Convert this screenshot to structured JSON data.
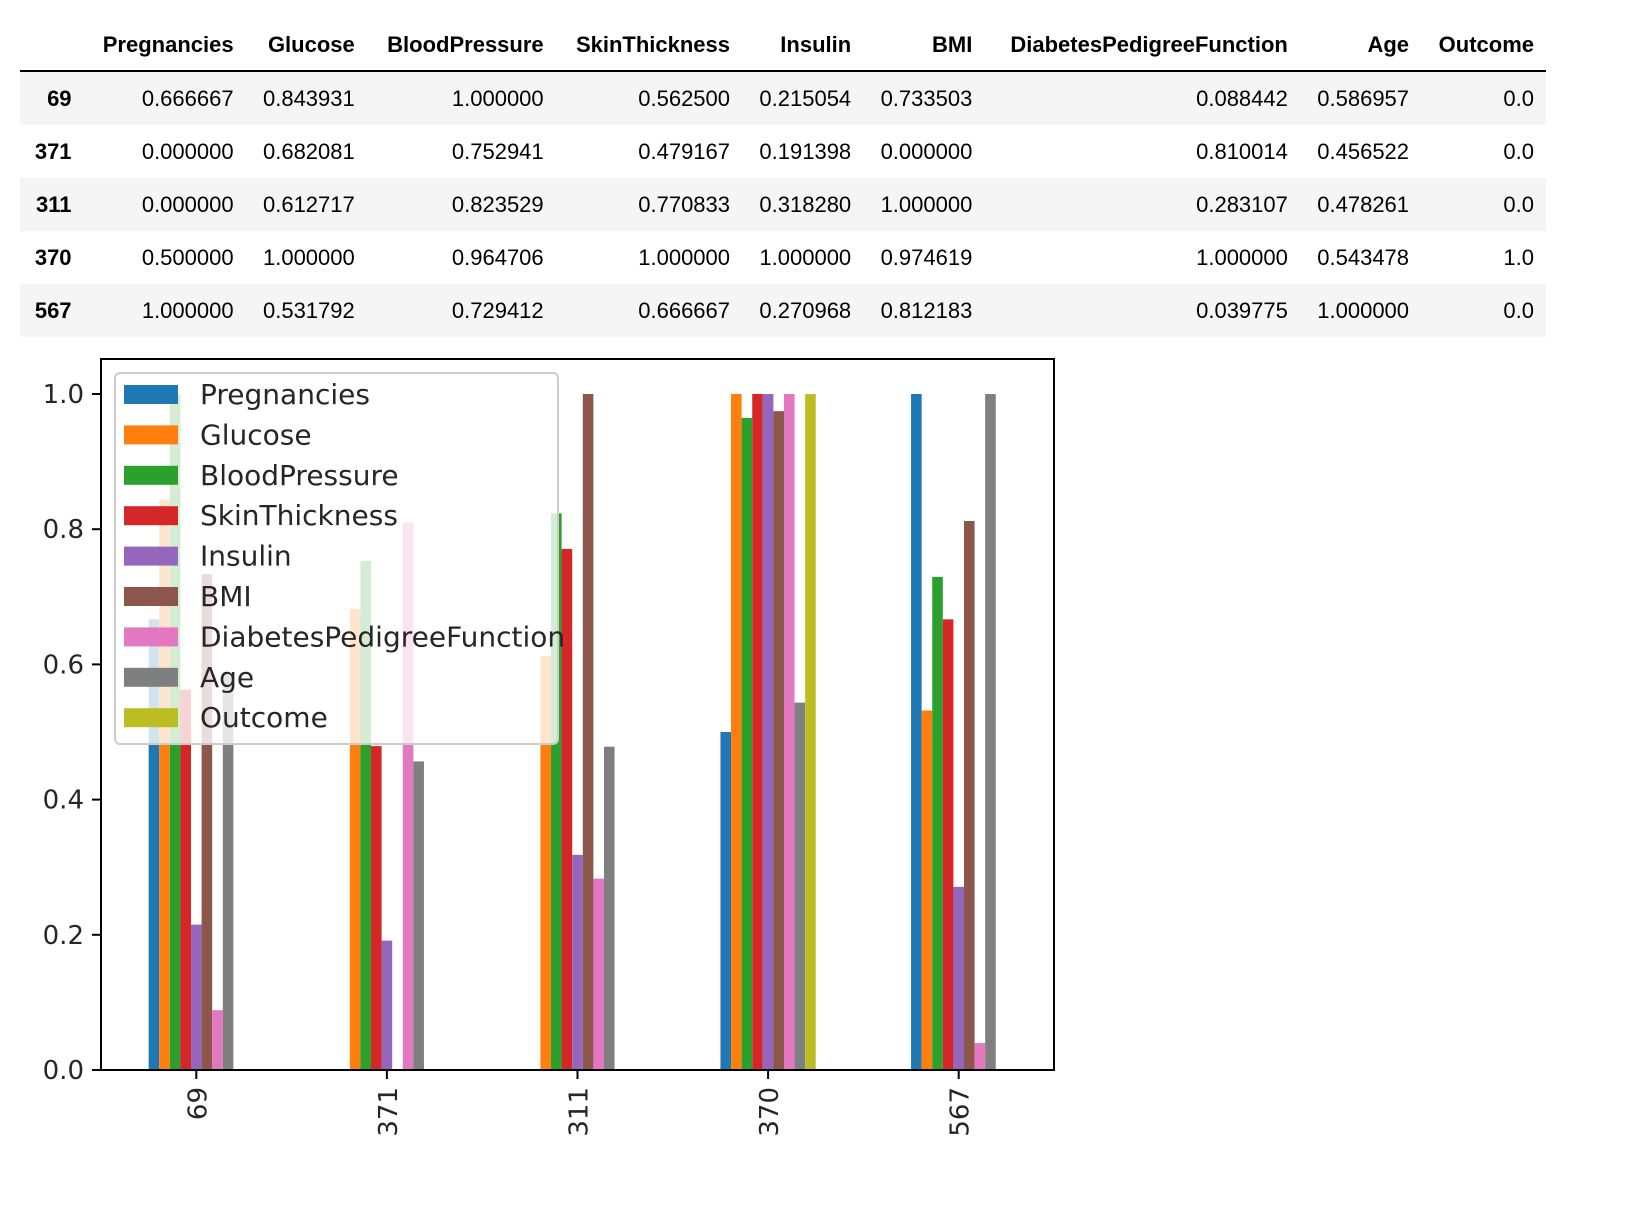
{
  "table": {
    "columns": [
      "",
      "Pregnancies",
      "Glucose",
      "BloodPressure",
      "SkinThickness",
      "Insulin",
      "BMI",
      "DiabetesPedigreeFunction",
      "Age",
      "Outcome"
    ],
    "rows": [
      {
        "index": "69",
        "cells": [
          "0.666667",
          "0.843931",
          "1.000000",
          "0.562500",
          "0.215054",
          "0.733503",
          "0.088442",
          "0.586957",
          "0.0"
        ]
      },
      {
        "index": "371",
        "cells": [
          "0.000000",
          "0.682081",
          "0.752941",
          "0.479167",
          "0.191398",
          "0.000000",
          "0.810014",
          "0.456522",
          "0.0"
        ]
      },
      {
        "index": "311",
        "cells": [
          "0.000000",
          "0.612717",
          "0.823529",
          "0.770833",
          "0.318280",
          "1.000000",
          "0.283107",
          "0.478261",
          "0.0"
        ]
      },
      {
        "index": "370",
        "cells": [
          "0.500000",
          "1.000000",
          "0.964706",
          "1.000000",
          "1.000000",
          "0.974619",
          "1.000000",
          "0.543478",
          "1.0"
        ]
      },
      {
        "index": "567",
        "cells": [
          "1.000000",
          "0.531792",
          "0.729412",
          "0.666667",
          "0.270968",
          "0.812183",
          "0.039775",
          "1.000000",
          "0.0"
        ]
      }
    ]
  },
  "chart_data": {
    "type": "bar",
    "categories": [
      "69",
      "371",
      "311",
      "370",
      "567"
    ],
    "series": [
      {
        "name": "Pregnancies",
        "color": "#1f77b4",
        "values": [
          0.666667,
          0.0,
          0.0,
          0.5,
          1.0
        ]
      },
      {
        "name": "Glucose",
        "color": "#ff7f0e",
        "values": [
          0.843931,
          0.682081,
          0.612717,
          1.0,
          0.531792
        ]
      },
      {
        "name": "BloodPressure",
        "color": "#2ca02c",
        "values": [
          1.0,
          0.752941,
          0.823529,
          0.964706,
          0.729412
        ]
      },
      {
        "name": "SkinThickness",
        "color": "#d62728",
        "values": [
          0.5625,
          0.479167,
          0.770833,
          1.0,
          0.666667
        ]
      },
      {
        "name": "Insulin",
        "color": "#9467bd",
        "values": [
          0.215054,
          0.191398,
          0.31828,
          1.0,
          0.270968
        ]
      },
      {
        "name": "BMI",
        "color": "#8c564b",
        "values": [
          0.733503,
          0.0,
          1.0,
          0.974619,
          0.812183
        ]
      },
      {
        "name": "DiabetesPedigreeFunction",
        "color": "#e377c2",
        "values": [
          0.088442,
          0.810014,
          0.283107,
          1.0,
          0.039775
        ]
      },
      {
        "name": "Age",
        "color": "#7f7f7f",
        "values": [
          0.586957,
          0.456522,
          0.478261,
          0.543478,
          1.0
        ]
      },
      {
        "name": "Outcome",
        "color": "#bcbd22",
        "values": [
          0.0,
          0.0,
          0.0,
          1.0,
          0.0
        ]
      }
    ],
    "yticks": [
      0.0,
      0.2,
      0.4,
      0.6,
      0.8,
      1.0
    ],
    "ytick_labels": [
      "0.0",
      "0.2",
      "0.4",
      "0.6",
      "0.8",
      "1.0"
    ],
    "ylim": [
      0,
      1.0
    ],
    "xlabel": "",
    "ylabel": "",
    "title": "",
    "legend_position": "upper-left",
    "grid": false
  }
}
